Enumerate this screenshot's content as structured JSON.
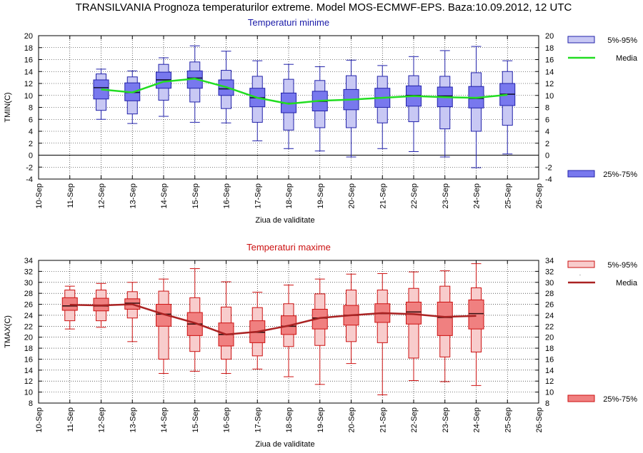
{
  "page": {
    "title": "TRANSILVANIA  Prognoza temperaturilor extreme.  Model MOS-ECMWF-EPS. Baza:10.09.2012, 12 UTC"
  },
  "chart_data": [
    {
      "type": "box",
      "title": "Temperaturi minime",
      "title_color": "#1a1aa8",
      "ylabel": "TMIN(C)",
      "xlabel": "Ziua de validitate",
      "ylim": [
        -4,
        20
      ],
      "yticks": [
        -4,
        -2,
        0,
        2,
        4,
        6,
        8,
        10,
        12,
        14,
        16,
        18,
        20
      ],
      "grid": true,
      "zero_line": true,
      "categories": [
        "10-Sep",
        "11-Sep",
        "12-Sep",
        "13-Sep",
        "14-Sep",
        "15-Sep",
        "16-Sep",
        "17-Sep",
        "18-Sep",
        "19-Sep",
        "20-Sep",
        "21-Sep",
        "22-Sep",
        "23-Sep",
        "24-Sep",
        "25-Sep",
        "26-Sep"
      ],
      "colors": {
        "box_fill": "#7878ee",
        "box_stroke": "#2222aa",
        "whisker_fill": "#c8c8f4",
        "median": "#111133",
        "mean_line": "#22dd22"
      },
      "legend": {
        "outer": "5%-95%",
        "mean": "Media",
        "inner": "25%-75%",
        "mean_dot": "·"
      },
      "boxes": [
        {
          "date": "12-Sep",
          "min": 6.0,
          "p5": 7.5,
          "q1": 9.4,
          "median": 11.3,
          "q3": 12.6,
          "p95": 13.6,
          "max": 14.4
        },
        {
          "date": "13-Sep",
          "min": 5.3,
          "p5": 6.9,
          "q1": 9.1,
          "median": 10.5,
          "q3": 12.1,
          "p95": 13.1,
          "max": 14.1
        },
        {
          "date": "14-Sep",
          "min": 6.5,
          "p5": 9.2,
          "q1": 11.2,
          "median": 12.6,
          "q3": 13.9,
          "p95": 15.2,
          "max": 16.3
        },
        {
          "date": "15-Sep",
          "min": 5.5,
          "p5": 8.9,
          "q1": 11.2,
          "median": 12.9,
          "q3": 14.1,
          "p95": 15.6,
          "max": 18.3
        },
        {
          "date": "16-Sep",
          "min": 5.4,
          "p5": 7.8,
          "q1": 10.0,
          "median": 11.1,
          "q3": 12.6,
          "p95": 14.2,
          "max": 17.4
        },
        {
          "date": "17-Sep",
          "min": 2.4,
          "p5": 5.5,
          "q1": 8.1,
          "median": 9.6,
          "q3": 11.2,
          "p95": 13.2,
          "max": 15.8
        },
        {
          "date": "18-Sep",
          "min": 1.1,
          "p5": 4.2,
          "q1": 7.1,
          "median": 8.7,
          "q3": 10.4,
          "p95": 12.7,
          "max": 15.2
        },
        {
          "date": "19-Sep",
          "min": 0.7,
          "p5": 4.6,
          "q1": 7.4,
          "median": 9.0,
          "q3": 10.7,
          "p95": 12.5,
          "max": 14.8
        },
        {
          "date": "20-Sep",
          "min": -0.3,
          "p5": 4.6,
          "q1": 7.6,
          "median": 9.3,
          "q3": 11.0,
          "p95": 13.3,
          "max": 15.9
        },
        {
          "date": "21-Sep",
          "min": 1.1,
          "p5": 5.4,
          "q1": 8.0,
          "median": 9.6,
          "q3": 11.2,
          "p95": 13.2,
          "max": 15.0
        },
        {
          "date": "22-Sep",
          "min": 0.6,
          "p5": 5.6,
          "q1": 8.2,
          "median": 10.0,
          "q3": 11.6,
          "p95": 13.3,
          "max": 16.5
        },
        {
          "date": "23-Sep",
          "min": -0.3,
          "p5": 4.4,
          "q1": 8.1,
          "median": 9.9,
          "q3": 11.4,
          "p95": 13.2,
          "max": 17.5
        },
        {
          "date": "24-Sep",
          "min": -2.1,
          "p5": 4.0,
          "q1": 7.9,
          "median": 9.5,
          "q3": 11.5,
          "p95": 13.8,
          "max": 18.2
        },
        {
          "date": "25-Sep",
          "min": 0.2,
          "p5": 5.0,
          "q1": 8.3,
          "median": 10.2,
          "q3": 12.0,
          "p95": 14.0,
          "max": 15.8
        }
      ],
      "mean": {
        "dates": [
          "12-Sep",
          "13-Sep",
          "14-Sep",
          "15-Sep",
          "16-Sep",
          "17-Sep",
          "18-Sep",
          "19-Sep",
          "20-Sep",
          "21-Sep",
          "22-Sep",
          "23-Sep",
          "24-Sep",
          "25-Sep"
        ],
        "values": [
          11.0,
          10.5,
          12.3,
          12.8,
          11.4,
          9.6,
          8.6,
          9.1,
          9.3,
          9.6,
          9.9,
          9.7,
          9.6,
          10.1
        ]
      }
    },
    {
      "type": "box",
      "title": "Temperaturi maxime",
      "title_color": "#cc1111",
      "ylabel": "TMAX(C)",
      "xlabel": "Ziua de validitate",
      "ylim": [
        8,
        34
      ],
      "yticks": [
        8,
        10,
        12,
        14,
        16,
        18,
        20,
        22,
        24,
        26,
        28,
        30,
        32,
        34
      ],
      "grid": true,
      "zero_line": false,
      "categories": [
        "10-Sep",
        "11-Sep",
        "12-Sep",
        "13-Sep",
        "14-Sep",
        "15-Sep",
        "16-Sep",
        "17-Sep",
        "18-Sep",
        "19-Sep",
        "20-Sep",
        "21-Sep",
        "22-Sep",
        "23-Sep",
        "24-Sep",
        "25-Sep",
        "26-Sep"
      ],
      "colors": {
        "box_fill": "#f08080",
        "box_stroke": "#cc1111",
        "whisker_fill": "#f8cccc",
        "median": "#331111",
        "mean_line": "#aa2222"
      },
      "legend": {
        "outer": "5%-95%",
        "mean": "Media",
        "inner": "25%-75%",
        "mean_dot": "·"
      },
      "boxes": [
        {
          "date": "11-Sep",
          "min": 21.5,
          "p5": 23.0,
          "q1": 24.9,
          "median": 25.7,
          "q3": 27.2,
          "p95": 28.6,
          "max": 29.3
        },
        {
          "date": "12-Sep",
          "min": 21.8,
          "p5": 23.0,
          "q1": 24.8,
          "median": 25.7,
          "q3": 27.1,
          "p95": 28.6,
          "max": 29.8
        },
        {
          "date": "13-Sep",
          "min": 19.2,
          "p5": 23.5,
          "q1": 25.1,
          "median": 26.2,
          "q3": 27.0,
          "p95": 28.3,
          "max": 30.0
        },
        {
          "date": "14-Sep",
          "min": 13.4,
          "p5": 16.0,
          "q1": 22.0,
          "median": 24.2,
          "q3": 26.0,
          "p95": 28.4,
          "max": 30.6
        },
        {
          "date": "15-Sep",
          "min": 13.8,
          "p5": 17.4,
          "q1": 20.3,
          "median": 22.4,
          "q3": 24.5,
          "p95": 27.2,
          "max": 32.5
        },
        {
          "date": "16-Sep",
          "min": 13.4,
          "p5": 16.0,
          "q1": 18.4,
          "median": 20.5,
          "q3": 22.6,
          "p95": 25.5,
          "max": 30.1
        },
        {
          "date": "17-Sep",
          "min": 14.2,
          "p5": 16.6,
          "q1": 19.0,
          "median": 20.9,
          "q3": 23.0,
          "p95": 25.4,
          "max": 28.2
        },
        {
          "date": "18-Sep",
          "min": 12.8,
          "p5": 18.3,
          "q1": 20.5,
          "median": 22.0,
          "q3": 23.9,
          "p95": 26.1,
          "max": 29.5
        },
        {
          "date": "19-Sep",
          "min": 11.4,
          "p5": 18.5,
          "q1": 21.5,
          "median": 23.5,
          "q3": 25.1,
          "p95": 27.9,
          "max": 30.6
        },
        {
          "date": "20-Sep",
          "min": 15.2,
          "p5": 19.2,
          "q1": 22.2,
          "median": 24.0,
          "q3": 25.8,
          "p95": 28.6,
          "max": 31.5
        },
        {
          "date": "21-Sep",
          "min": 9.5,
          "p5": 19.0,
          "q1": 22.7,
          "median": 24.3,
          "q3": 26.1,
          "p95": 28.6,
          "max": 31.6
        },
        {
          "date": "22-Sep",
          "min": 12.1,
          "p5": 16.2,
          "q1": 22.4,
          "median": 24.6,
          "q3": 26.4,
          "p95": 28.9,
          "max": 31.9
        },
        {
          "date": "23-Sep",
          "min": 11.9,
          "p5": 16.4,
          "q1": 20.3,
          "median": 23.6,
          "q3": 26.4,
          "p95": 29.3,
          "max": 32.1
        },
        {
          "date": "24-Sep",
          "min": 11.2,
          "p5": 17.3,
          "q1": 21.5,
          "median": 24.3,
          "q3": 26.8,
          "p95": 29.0,
          "max": 33.4
        }
      ],
      "mean": {
        "dates": [
          "11-Sep",
          "12-Sep",
          "13-Sep",
          "14-Sep",
          "15-Sep",
          "16-Sep",
          "17-Sep",
          "18-Sep",
          "19-Sep",
          "20-Sep",
          "21-Sep",
          "22-Sep",
          "23-Sep",
          "24-Sep"
        ],
        "values": [
          25.9,
          25.8,
          26.0,
          24.2,
          22.6,
          20.5,
          21.0,
          22.1,
          23.5,
          24.0,
          24.4,
          24.2,
          23.7,
          23.9
        ]
      }
    }
  ]
}
